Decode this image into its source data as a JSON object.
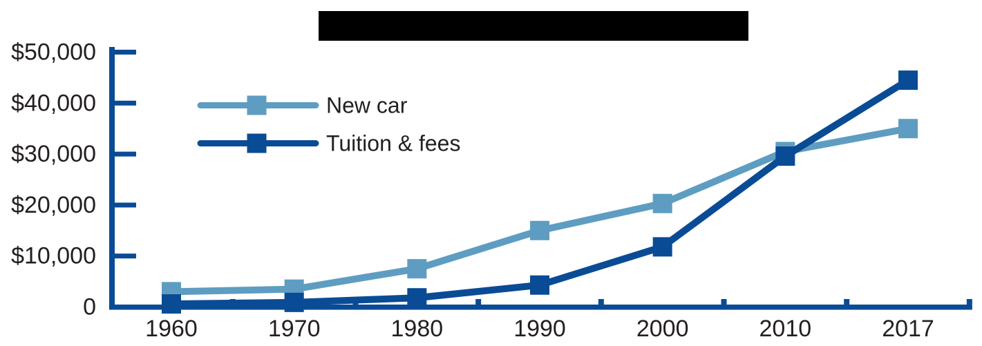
{
  "title_bar": {
    "redacted": true,
    "color": "#000000"
  },
  "colors": {
    "axis": "#0A4B96",
    "new_car": "#5E9DC1",
    "tuition": "#0A4B96",
    "text": "#231F20",
    "background": "#ffffff"
  },
  "legend": {
    "entries": [
      {
        "label": "New car",
        "color": "#5E9DC1"
      },
      {
        "label": "Tuition & fees",
        "color": "#0A4B96"
      }
    ]
  },
  "chart_data": {
    "type": "line",
    "title": "",
    "categories": [
      "1960",
      "1970",
      "1980",
      "1990",
      "2000",
      "2010",
      "2017"
    ],
    "series": [
      {
        "name": "New car",
        "color": "#5E9DC1",
        "marker": "square",
        "values": [
          3000,
          3500,
          7500,
          15000,
          20300,
          30500,
          35000
        ]
      },
      {
        "name": "Tuition & fees",
        "color": "#0A4B96",
        "marker": "square",
        "values": [
          600,
          900,
          1800,
          4300,
          11800,
          29600,
          44500
        ]
      }
    ],
    "xlabel": "",
    "ylabel": "",
    "x_axis": {
      "tick_labels": [
        "1960",
        "1970",
        "1980",
        "1990",
        "2000",
        "2010",
        "2017"
      ]
    },
    "y_axis": {
      "min": 0,
      "max": 50000,
      "tick_interval": 10000,
      "tick_labels": [
        "0",
        "$10,000",
        "$20,000",
        "$30,000",
        "$40,000",
        "$50,000"
      ]
    },
    "grid": false,
    "legend_position": "top-left-inside"
  }
}
